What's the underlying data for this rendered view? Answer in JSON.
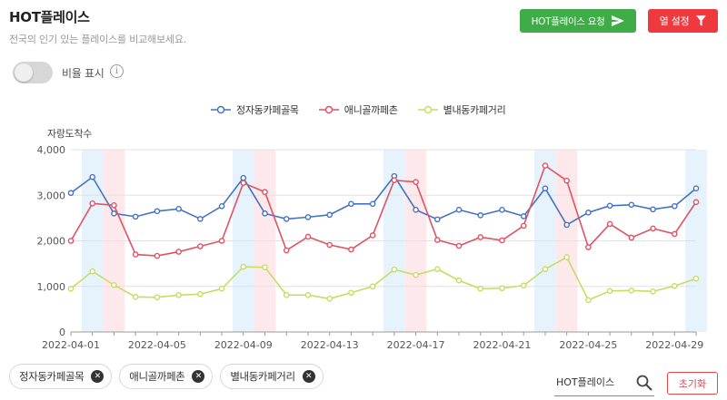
{
  "header": {
    "title": "HOT플레이스",
    "subtitle": "전국의 인기 있는 플레이스를 비교해보세요.",
    "request_button": "HOT플레이스 요청",
    "column_button": "열 설정"
  },
  "toggle": {
    "label": "비율 표시",
    "checked": false
  },
  "colors": {
    "primary_green": "#3fac47",
    "danger_red": "#ee3a3f"
  },
  "chart_data": {
    "type": "line",
    "ylabel": "자랑도착수",
    "ylim": [
      0,
      4000
    ],
    "yticks": [
      "0",
      "1,000",
      "2,000",
      "3,000",
      "4,000"
    ],
    "xtick_labels": [
      "2022-04-01",
      "2022-04-05",
      "2022-04-09",
      "2022-04-13",
      "2022-04-17",
      "2022-04-21",
      "2022-04-25",
      "2022-04-29"
    ],
    "x": [
      "2022-04-01",
      "2022-04-02",
      "2022-04-03",
      "2022-04-04",
      "2022-04-05",
      "2022-04-06",
      "2022-04-07",
      "2022-04-08",
      "2022-04-09",
      "2022-04-10",
      "2022-04-11",
      "2022-04-12",
      "2022-04-13",
      "2022-04-14",
      "2022-04-15",
      "2022-04-16",
      "2022-04-17",
      "2022-04-18",
      "2022-04-19",
      "2022-04-20",
      "2022-04-21",
      "2022-04-22",
      "2022-04-23",
      "2022-04-24",
      "2022-04-25",
      "2022-04-26",
      "2022-04-27",
      "2022-04-28",
      "2022-04-29",
      "2022-04-30"
    ],
    "weekend_bands": [
      {
        "date": "2022-04-02",
        "kind": "saturday"
      },
      {
        "date": "2022-04-03",
        "kind": "sunday"
      },
      {
        "date": "2022-04-09",
        "kind": "saturday"
      },
      {
        "date": "2022-04-10",
        "kind": "sunday"
      },
      {
        "date": "2022-04-16",
        "kind": "saturday"
      },
      {
        "date": "2022-04-17",
        "kind": "sunday"
      },
      {
        "date": "2022-04-23",
        "kind": "saturday"
      },
      {
        "date": "2022-04-24",
        "kind": "sunday"
      },
      {
        "date": "2022-04-30",
        "kind": "saturday"
      }
    ],
    "series": [
      {
        "name": "정자동카페골목",
        "color": "#4472c4",
        "values": [
          3050,
          3400,
          2600,
          2530,
          2650,
          2700,
          2480,
          2760,
          3380,
          2600,
          2480,
          2520,
          2570,
          2810,
          2810,
          3420,
          2680,
          2470,
          2680,
          2560,
          2680,
          2540,
          3150,
          2350,
          2620,
          2770,
          2790,
          2690,
          2760,
          3150
        ]
      },
      {
        "name": "애니골까페촌",
        "color": "#e15262",
        "values": [
          2000,
          2820,
          2780,
          1700,
          1670,
          1760,
          1880,
          2000,
          3270,
          3070,
          1790,
          2090,
          1910,
          1810,
          2120,
          3330,
          3290,
          2020,
          1890,
          2080,
          2010,
          2330,
          3650,
          3320,
          1860,
          2370,
          2070,
          2270,
          2150,
          2850
        ]
      },
      {
        "name": "별내동카페거리",
        "color": "#c8dc64",
        "values": [
          950,
          1330,
          1030,
          770,
          760,
          810,
          830,
          950,
          1430,
          1420,
          810,
          810,
          730,
          860,
          1000,
          1370,
          1250,
          1380,
          1130,
          950,
          960,
          1020,
          1380,
          1640,
          700,
          900,
          910,
          890,
          1010,
          1170
        ]
      }
    ]
  },
  "chips": [
    "정자동카페골목",
    "애니골까페촌",
    "별내동카페거리"
  ],
  "search": {
    "value": "HOT플레이스"
  },
  "reset_button": "초기화"
}
